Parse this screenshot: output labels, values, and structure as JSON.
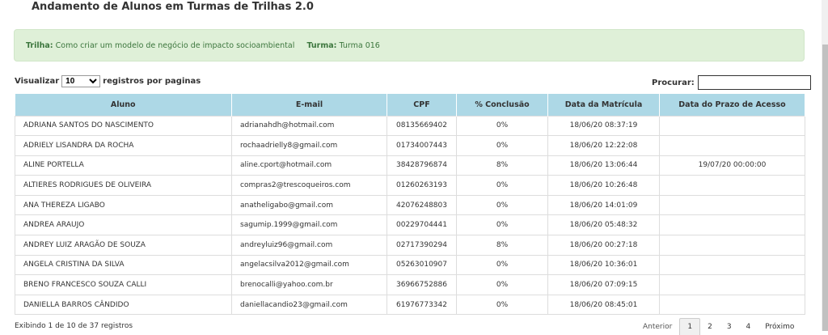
{
  "title": "Andamento de Alunos em Turmas de Trilhas 2.0",
  "alert": {
    "trilha_label": "Trilha:",
    "trilha": "Como criar um modelo de negócio de impacto socioambiental",
    "turma_label": "Turma:",
    "turma": "Turma 016"
  },
  "length": {
    "prefix": "Visualizar",
    "value": "10",
    "suffix": "registros por paginas"
  },
  "search": {
    "label": "Procurar:",
    "value": ""
  },
  "columns": [
    "Aluno",
    "E-mail",
    "CPF",
    "% Conclusão",
    "Data da Matrícula",
    "Data do Prazo de Acesso"
  ],
  "rows": [
    [
      "ADRIANA SANTOS DO NASCIMENTO",
      "adrianahdh@hotmail.com",
      "08135669402",
      "0%",
      "18/06/20 08:37:19",
      ""
    ],
    [
      "ADRIELY LISANDRA DA ROCHA",
      "rochaadrielly8@gmail.com",
      "01734007443",
      "0%",
      "18/06/20 12:22:08",
      ""
    ],
    [
      "ALINE PORTELLA",
      "aline.cport@hotmail.com",
      "38428796874",
      "8%",
      "18/06/20 13:06:44",
      "19/07/20 00:00:00"
    ],
    [
      "ALTIERES RODRIGUES DE OLIVEIRA",
      "compras2@trescoqueiros.com",
      "01260263193",
      "0%",
      "18/06/20 10:26:48",
      ""
    ],
    [
      "ANA THEREZA LIGABO",
      "anatheligabo@gmail.com",
      "42076248803",
      "0%",
      "18/06/20 14:01:09",
      ""
    ],
    [
      "ANDREA ARAUJO",
      "sagumip.1999@gmail.com",
      "00229704441",
      "0%",
      "18/06/20 05:48:32",
      ""
    ],
    [
      "ANDREY LUIZ ARAGÃO DE SOUZA",
      "andreyluiz96@gmail.com",
      "02717390294",
      "8%",
      "18/06/20 00:27:18",
      ""
    ],
    [
      "ANGELA CRISTINA DA SILVA",
      "angelacsilva2012@gmail.com",
      "05263010907",
      "0%",
      "18/06/20 10:36:01",
      ""
    ],
    [
      "BRENO FRANCESCO SOUZA CALLI",
      "brenocalli@yahoo.com.br",
      "36966752886",
      "0%",
      "18/06/20 07:09:15",
      ""
    ],
    [
      "DANIELLA BARROS CÂNDIDO",
      "daniellacandio23@gmail.com",
      "61976773342",
      "0%",
      "18/06/20 08:45:01",
      ""
    ]
  ],
  "info": "Exibindo 1 de 10 de 37 registros",
  "pagination": {
    "prev": "Anterior",
    "pages": [
      "1",
      "2",
      "3",
      "4"
    ],
    "current": "1",
    "next": "Próximo"
  }
}
